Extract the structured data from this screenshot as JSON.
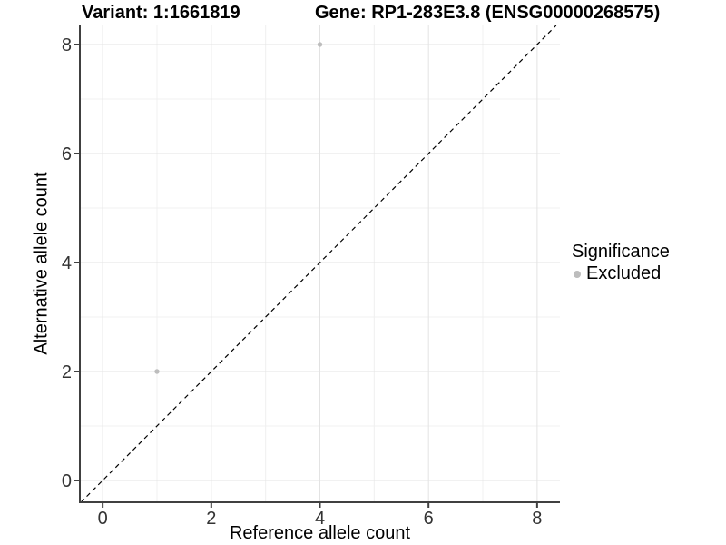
{
  "title_bar": {
    "variant_title": "Variant: 1:1661819",
    "gene_title": "Gene: RP1-283E3.8 (ENSG00000268575)"
  },
  "axes": {
    "x_label": "Reference allele count",
    "y_label": "Alternative allele count"
  },
  "legend": {
    "title": "Significance",
    "items": [
      {
        "label": "Excluded",
        "color": "#bdbdbd"
      }
    ]
  },
  "chart_data": {
    "type": "scatter",
    "title": "Variant: 1:1661819 / Gene: RP1-283E3.8 (ENSG00000268575)",
    "xlabel": "Reference allele count",
    "ylabel": "Alternative allele count",
    "xlim": [
      -0.42,
      8.42
    ],
    "ylim": [
      -0.4,
      8.35
    ],
    "xticks": [
      0,
      2,
      4,
      6,
      8
    ],
    "yticks": [
      0,
      2,
      4,
      6,
      8
    ],
    "minor_ticks": [
      1,
      3,
      5,
      7
    ],
    "grid": "major+minor",
    "legend_position": "right",
    "series": [
      {
        "name": "Excluded",
        "color": "#bdbdbd",
        "points": [
          {
            "x": 1,
            "y": 2
          },
          {
            "x": 4,
            "y": 8
          }
        ]
      }
    ],
    "reference_line": {
      "type": "identity y=x",
      "style": "dashed",
      "color": "#000000"
    }
  },
  "colors": {
    "background": "#ffffff",
    "grid_major": "#e3e3e3",
    "grid_minor": "#f0f0f0",
    "axis_line": "#404040",
    "tick_label": "#333333",
    "point": "#bdbdbd",
    "text": "#000000"
  }
}
